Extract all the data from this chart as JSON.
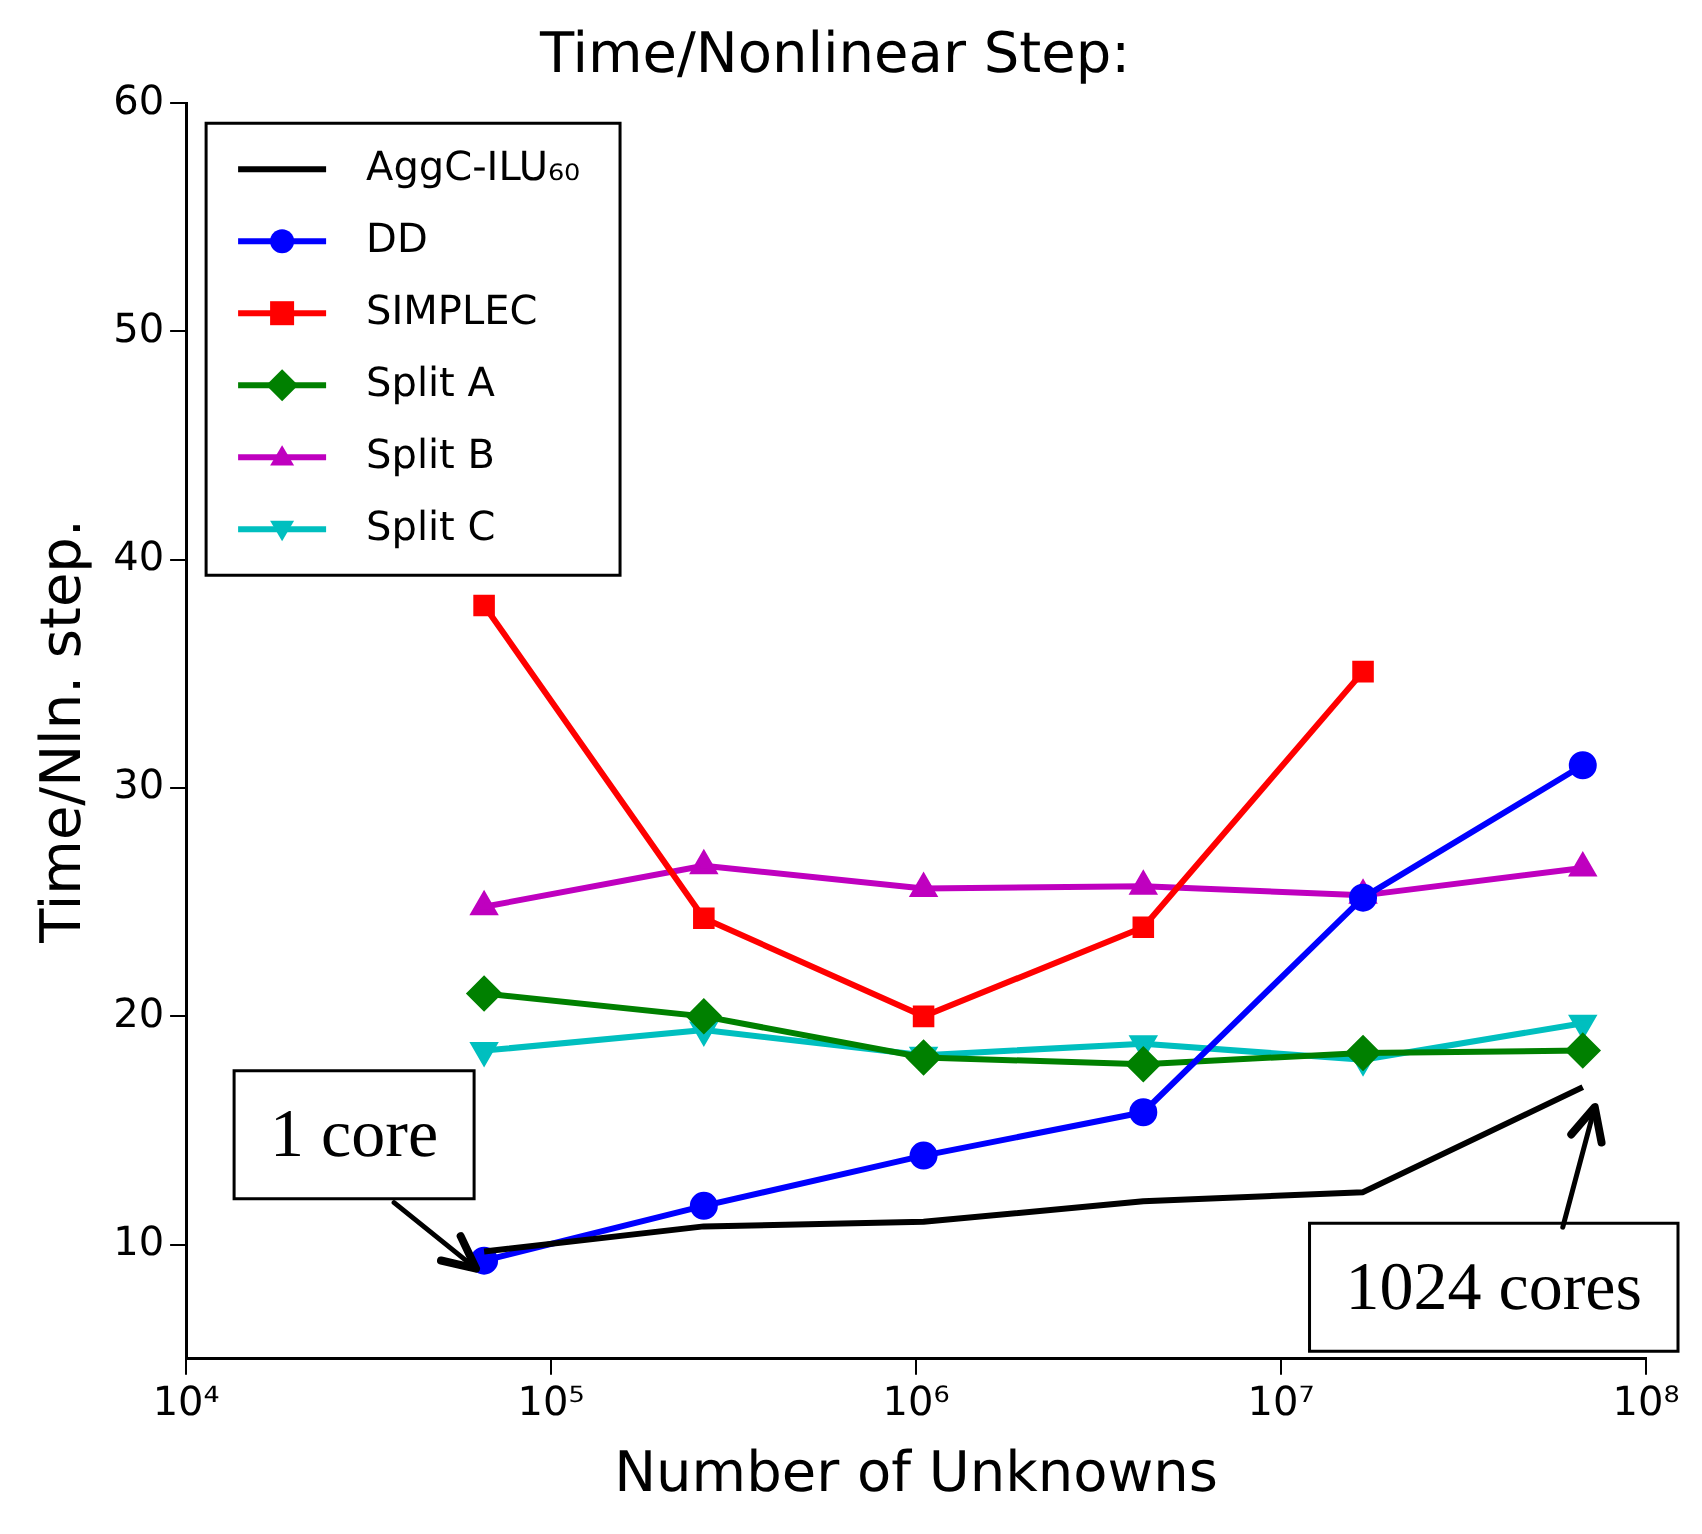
{
  "chart_data": {
    "type": "line",
    "title": "Time/Nonlinear Step:",
    "xlabel": "Number of Unknowns",
    "ylabel": "Time/Nln. step.",
    "x": [
      65536,
      262144,
      1048576,
      4194304,
      16777216,
      67108864
    ],
    "xlim": [
      10000,
      100000000
    ],
    "xticks": [
      {
        "value": 10000,
        "label": "10⁴"
      },
      {
        "value": 100000,
        "label": "10⁵"
      },
      {
        "value": 1000000,
        "label": "10⁶"
      },
      {
        "value": 10000000,
        "label": "10⁷"
      },
      {
        "value": 100000000,
        "label": "10⁸"
      }
    ],
    "ylim": [
      5,
      60
    ],
    "yticks": [
      10,
      20,
      30,
      40,
      50,
      60
    ],
    "log": "x",
    "grid": false,
    "legend": "top left",
    "series": [
      {
        "name": "AggC-ILU₆₀",
        "color": "#000000",
        "marker": "none",
        "values": [
          9.7,
          10.8,
          11.0,
          11.9,
          12.3,
          16.9
        ]
      },
      {
        "name": "DD",
        "color": "#0000ff",
        "marker": "circle",
        "values": [
          9.3,
          11.7,
          13.9,
          15.8,
          25.2,
          31.0
        ]
      },
      {
        "name": "SIMPLEC",
        "color": "#ff0000",
        "marker": "square",
        "values": [
          38.0,
          24.3,
          20.0,
          23.9,
          35.1,
          null
        ]
      },
      {
        "name": "Split A",
        "color": "#008000",
        "marker": "diamond",
        "values": [
          21.0,
          20.0,
          18.2,
          17.9,
          18.4,
          18.5
        ]
      },
      {
        "name": "Split B",
        "color": "#bf00bf",
        "marker": "triangle",
        "values": [
          24.8,
          26.6,
          25.6,
          25.7,
          25.3,
          26.5
        ]
      },
      {
        "name": "Split C",
        "color": "#00bfbf",
        "marker": "triangle-down",
        "values": [
          18.5,
          19.4,
          18.3,
          18.8,
          18.1,
          19.7
        ]
      }
    ],
    "annotations": [
      {
        "text": "1 core",
        "x": 65536,
        "y": 9.3
      },
      {
        "text": "1024 cores",
        "x": 67108864,
        "y": 16.9
      }
    ]
  }
}
